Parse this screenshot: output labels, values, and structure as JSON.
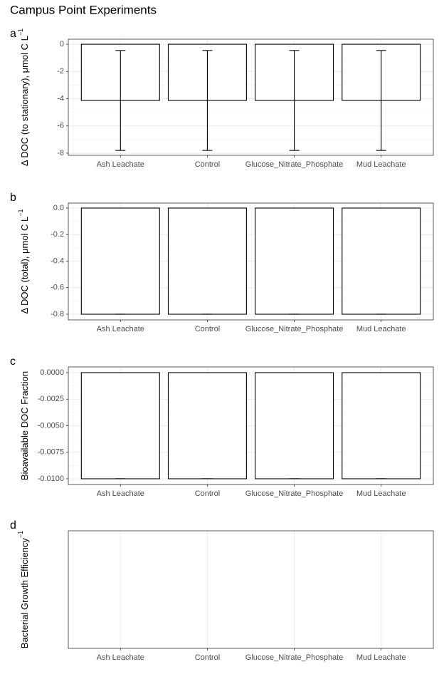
{
  "title": "Campus Point Experiments",
  "chart_data": [
    {
      "type": "bar",
      "panel": "a",
      "ylabel": "Δ DOC (to stationary), μmol C L",
      "ylabel_superscript": "−1",
      "categories": [
        "Ash Leachate",
        "Control",
        "Glucose_Nitrate_Phosphate",
        "Mud Leachate"
      ],
      "values": [
        -4.13,
        -4.13,
        -4.13,
        -4.13
      ],
      "errors": [
        3.67,
        3.67,
        3.67,
        3.67
      ],
      "ylim": [
        -8.16,
        0.37
      ],
      "yticks": [
        -8,
        -6,
        -4,
        -2,
        0
      ],
      "grid": true
    },
    {
      "type": "bar",
      "panel": "b",
      "ylabel": "Δ DOC (total), μmol C L",
      "ylabel_superscript": "−1",
      "categories": [
        "Ash Leachate",
        "Control",
        "Glucose_Nitrate_Phosphate",
        "Mud Leachate"
      ],
      "values": [
        -0.8,
        -0.8,
        -0.8,
        -0.8
      ],
      "errors": [
        0,
        0,
        0,
        0
      ],
      "ylim": [
        -0.843,
        0.0376
      ],
      "yticks": [
        {
          "value": -0.8,
          "label": "-0.8"
        },
        {
          "value": -0.6,
          "label": "-0.6"
        },
        {
          "value": -0.4,
          "label": "-0.4"
        },
        {
          "value": -0.2,
          "label": "-0.2"
        },
        {
          "value": 0,
          "label": "0.0"
        }
      ],
      "grid": true
    },
    {
      "type": "bar",
      "panel": "c",
      "ylabel": "Bioavailable DOC Fraction",
      "categories": [
        "Ash Leachate",
        "Control",
        "Glucose_Nitrate_Phosphate",
        "Mud Leachate"
      ],
      "values": [
        -0.01,
        -0.01,
        -0.01,
        -0.01
      ],
      "errors": [
        0,
        0,
        0,
        0
      ],
      "ylim": [
        -0.01054,
        0.000537
      ],
      "yticks": [
        {
          "value": -0.01,
          "label": "-0.0100"
        },
        {
          "value": -0.0075,
          "label": "-0.0075"
        },
        {
          "value": -0.005,
          "label": "-0.0050"
        },
        {
          "value": -0.0025,
          "label": "-0.0025"
        },
        {
          "value": 0,
          "label": "0.0000"
        }
      ],
      "grid": true
    },
    {
      "type": "bar",
      "panel": "d",
      "ylabel": "Bacterial Growth Efficiency",
      "ylabel_superscript": "−1",
      "categories": [
        "Ash Leachate",
        "Control",
        "Glucose_Nitrate_Phosphate",
        "Mud Leachate"
      ],
      "grid": true
    }
  ]
}
